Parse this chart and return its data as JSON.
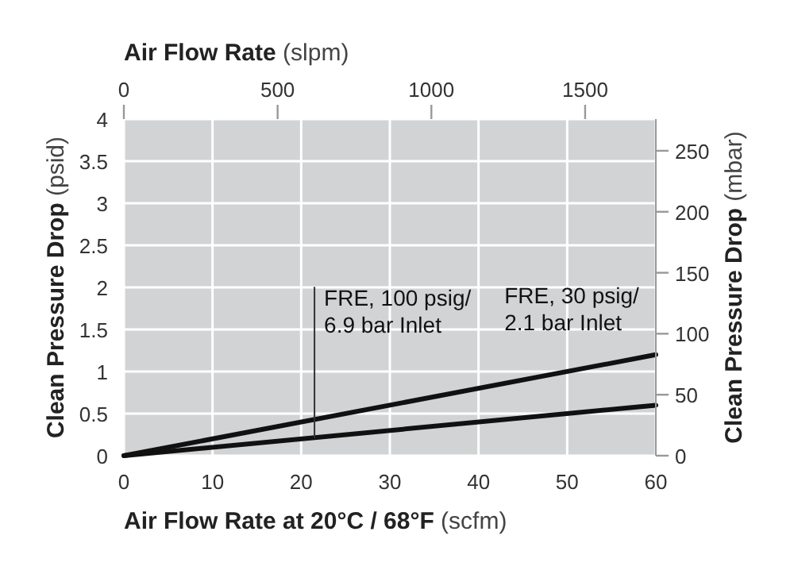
{
  "chart_data": {
    "type": "line",
    "xlabel": "Air Flow Rate at 20°C / 68°F (scfm)",
    "ylabel": "Clean Pressure Drop (psid)",
    "y2label": "Clean Pressure Drop (mbar)",
    "x2label": "Air Flow Rate (slpm)",
    "x": [
      0,
      60
    ],
    "series": [
      {
        "color": "#111111",
        "values": [
          0,
          0.6
        ]
      },
      {
        "color": "#111111",
        "values": [
          0,
          1.2
        ]
      }
    ],
    "xlim": [
      0,
      60
    ],
    "xticks": [
      0,
      10,
      20,
      30,
      40,
      50,
      60
    ],
    "ylim": [
      0,
      4
    ],
    "yticks": [
      0,
      0.5,
      1,
      1.5,
      2,
      2.5,
      3,
      3.5,
      4
    ],
    "y2lim": [
      0,
      276
    ],
    "y2ticks": [
      0,
      50,
      100,
      150,
      200,
      250
    ],
    "x2lim": [
      0,
      1730
    ],
    "x2ticks": [
      0,
      500,
      1000,
      1500
    ],
    "grid": true,
    "marker": "none",
    "line_style": "solid",
    "annotations": [
      {
        "text": "FRE, 100 psig/\n6.9 bar Inlet",
        "x": 21.5,
        "y": 0.21
      },
      {
        "text": "FRE, 30 psig/\n2.1 bar Inlet",
        "x": 49,
        "y": 0.98
      }
    ]
  }
}
